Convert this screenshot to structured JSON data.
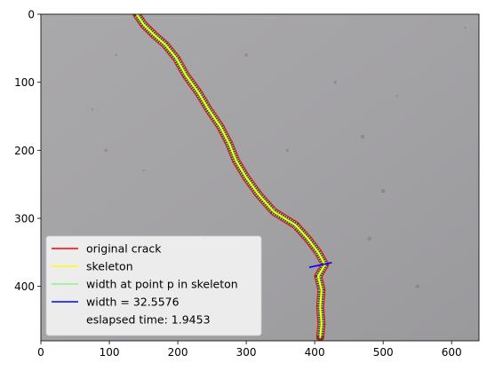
{
  "chart_data": {
    "type": "image",
    "xlim": [
      0,
      640
    ],
    "ylim": [
      480,
      0
    ],
    "x_ticks": [
      0,
      100,
      200,
      300,
      400,
      500,
      600
    ],
    "y_ticks": [
      0,
      100,
      200,
      300,
      400
    ],
    "legend_position": "lower-left",
    "legend": [
      {
        "label": "original crack",
        "color": "#ff0000",
        "style": "line"
      },
      {
        "label": "skeleton",
        "color": "#ffff00",
        "style": "line"
      },
      {
        "label": "width at point p in skeleton",
        "color": "#90ee90",
        "style": "line"
      },
      {
        "label": "width = 32.5576",
        "color": "#0000ff",
        "style": "line"
      },
      {
        "label": "eslapsed time: 1.9453",
        "color": "",
        "style": "none"
      }
    ],
    "crack_centerline": [
      [
        140,
        0
      ],
      [
        150,
        15
      ],
      [
        165,
        30
      ],
      [
        182,
        45
      ],
      [
        198,
        65
      ],
      [
        212,
        90
      ],
      [
        230,
        115
      ],
      [
        245,
        140
      ],
      [
        262,
        165
      ],
      [
        275,
        190
      ],
      [
        285,
        215
      ],
      [
        300,
        240
      ],
      [
        318,
        265
      ],
      [
        340,
        290
      ],
      [
        372,
        310
      ],
      [
        390,
        330
      ],
      [
        405,
        350
      ],
      [
        415,
        368
      ],
      [
        405,
        385
      ],
      [
        410,
        405
      ],
      [
        408,
        430
      ],
      [
        410,
        455
      ],
      [
        408,
        475
      ]
    ],
    "measured_width": {
      "value": 32.5576,
      "p1": [
        392,
        372
      ],
      "p2": [
        425,
        365
      ]
    }
  }
}
